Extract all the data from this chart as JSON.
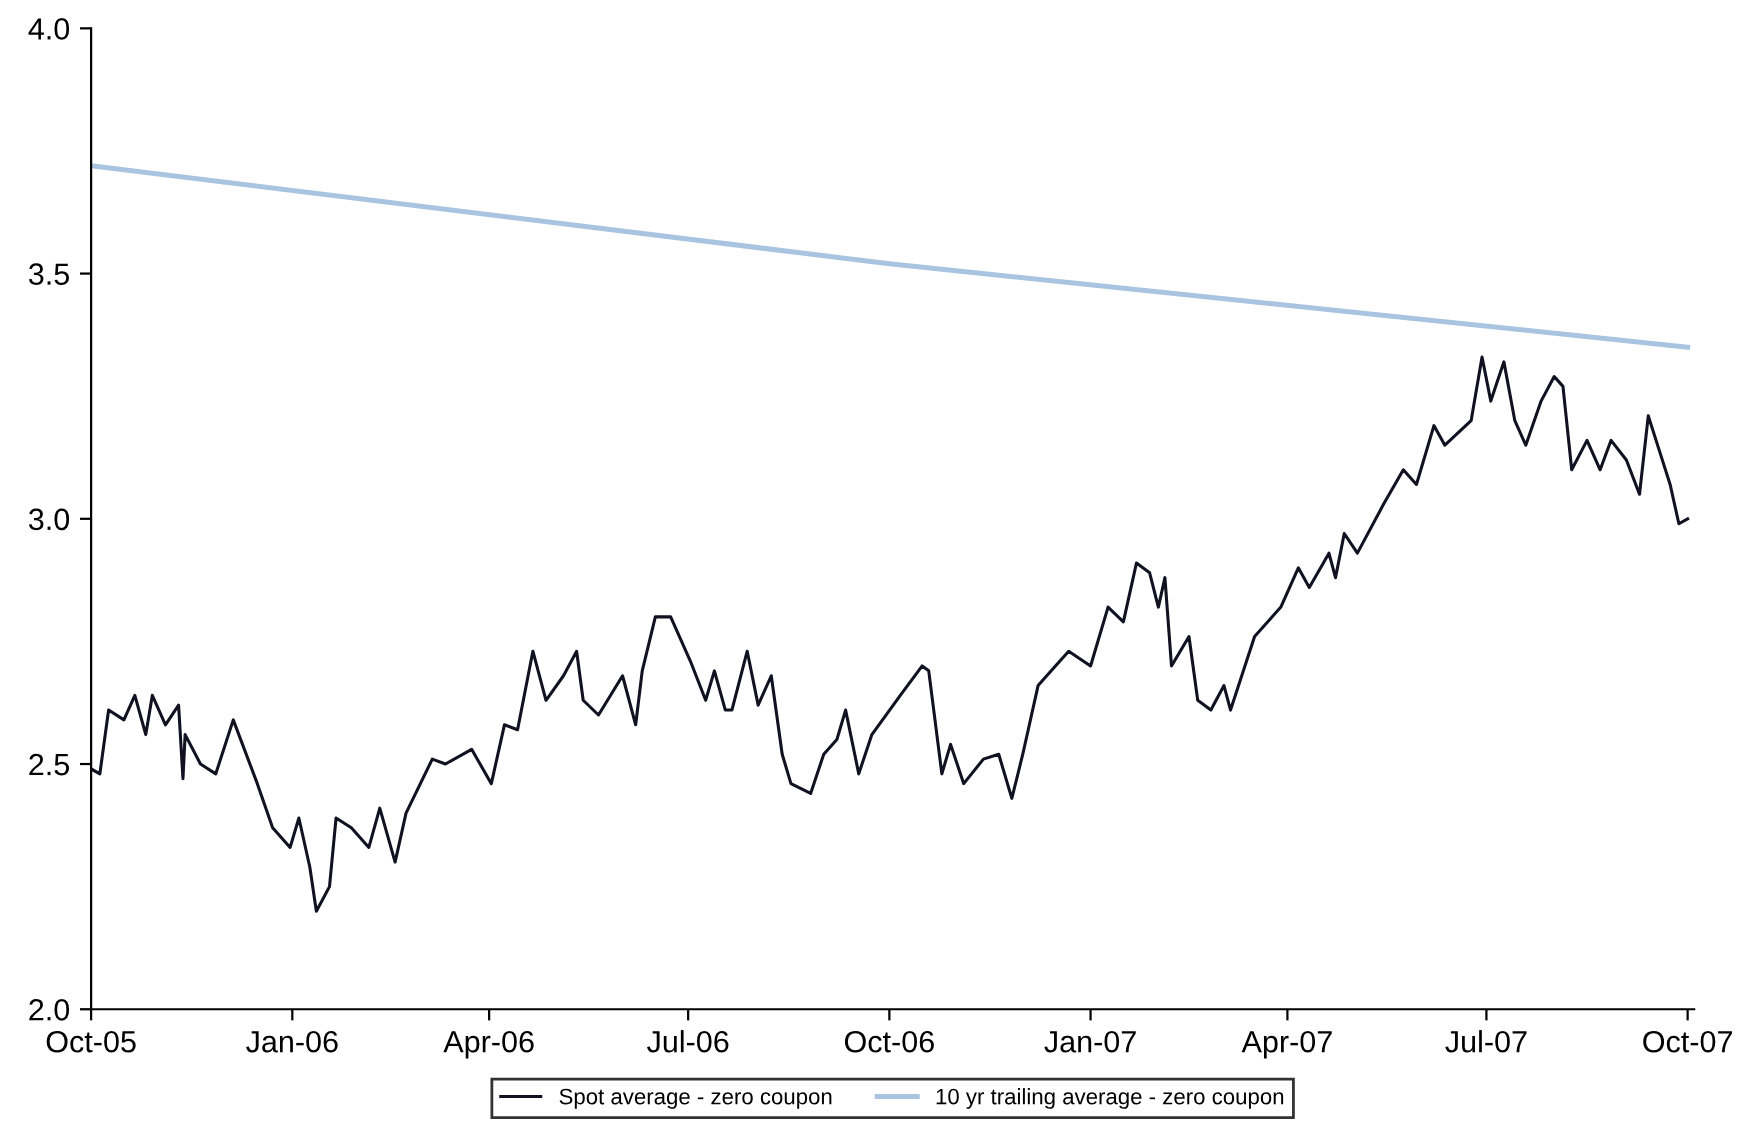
{
  "chart_data": {
    "type": "line",
    "xlim": [
      "2005-10-01",
      "2007-10-04"
    ],
    "xticks": [
      {
        "value": "2005-10-01",
        "label": "Oct-05"
      },
      {
        "value": "2006-01-01",
        "label": "Jan-06"
      },
      {
        "value": "2006-04-01",
        "label": "Apr-06"
      },
      {
        "value": "2006-07-01",
        "label": "Jul-06"
      },
      {
        "value": "2006-10-01",
        "label": "Oct-06"
      },
      {
        "value": "2007-01-01",
        "label": "Jan-07"
      },
      {
        "value": "2007-04-01",
        "label": "Apr-07"
      },
      {
        "value": "2007-07-01",
        "label": "Jul-07"
      },
      {
        "value": "2007-10-01",
        "label": "Oct-07"
      }
    ],
    "ylim": [
      2.0,
      4.0
    ],
    "yticks": [
      {
        "value": 2,
        "label": "2.0"
      },
      {
        "value": 2.5,
        "label": "2.5"
      },
      {
        "value": 3,
        "label": "3.0"
      },
      {
        "value": 3.5,
        "label": "3.5"
      },
      {
        "value": 4,
        "label": "4.0"
      }
    ],
    "grid": false,
    "legend": "bottom",
    "marker": "none",
    "line_style": "solid",
    "series": [
      {
        "name": "Spot average - zero coupon",
        "color": "#111122",
        "x": [
          "2005-10-01",
          "2005-10-05",
          "2005-10-09",
          "2005-10-16",
          "2005-10-21",
          "2005-10-26",
          "2005-10-29",
          "2005-11-04",
          "2005-11-10",
          "2005-11-12",
          "2005-11-13",
          "2005-11-20",
          "2005-11-27",
          "2005-12-05",
          "2005-12-16",
          "2005-12-23",
          "2005-12-31",
          "2006-01-04",
          "2006-01-09",
          "2006-01-12",
          "2006-01-18",
          "2006-01-21",
          "2006-01-28",
          "2006-02-05",
          "2006-02-10",
          "2006-02-17",
          "2006-02-22",
          "2006-03-06",
          "2006-03-12",
          "2006-03-24",
          "2006-04-02",
          "2006-04-08",
          "2006-04-14",
          "2006-04-21",
          "2006-04-27",
          "2006-05-05",
          "2006-05-11",
          "2006-05-14",
          "2006-05-21",
          "2006-06-01",
          "2006-06-07",
          "2006-06-10",
          "2006-06-16",
          "2006-06-23",
          "2006-07-02",
          "2006-07-09",
          "2006-07-13",
          "2006-07-18",
          "2006-07-21",
          "2006-07-28",
          "2006-08-02",
          "2006-08-08",
          "2006-08-13",
          "2006-08-17",
          "2006-08-26",
          "2006-09-01",
          "2006-09-07",
          "2006-09-11",
          "2006-09-17",
          "2006-09-23",
          "2006-10-06",
          "2006-10-16",
          "2006-10-19",
          "2006-10-25",
          "2006-10-29",
          "2006-11-04",
          "2006-11-13",
          "2006-11-20",
          "2006-11-26",
          "2006-12-01",
          "2006-12-08",
          "2006-12-14",
          "2006-12-22",
          "2007-01-01",
          "2007-01-09",
          "2007-01-16",
          "2007-01-22",
          "2007-01-28",
          "2007-02-01",
          "2007-02-04",
          "2007-02-07",
          "2007-02-15",
          "2007-02-19",
          "2007-02-25",
          "2007-03-03",
          "2007-03-06",
          "2007-03-17",
          "2007-03-29",
          "2007-04-06",
          "2007-04-11",
          "2007-04-20",
          "2007-04-23",
          "2007-04-27",
          "2007-05-03",
          "2007-05-15",
          "2007-05-24",
          "2007-05-30",
          "2007-06-07",
          "2007-06-12",
          "2007-06-24",
          "2007-06-29",
          "2007-07-03",
          "2007-07-09",
          "2007-07-14",
          "2007-07-19",
          "2007-07-26",
          "2007-08-01",
          "2007-08-05",
          "2007-08-09",
          "2007-08-16",
          "2007-08-22",
          "2007-08-27",
          "2007-09-03",
          "2007-09-09",
          "2007-09-13",
          "2007-09-18",
          "2007-09-23",
          "2007-09-27",
          "2007-10-01"
        ],
        "values": [
          2.49,
          2.48,
          2.61,
          2.59,
          2.64,
          2.56,
          2.64,
          2.58,
          2.62,
          2.47,
          2.56,
          2.5,
          2.48,
          2.59,
          2.46,
          2.37,
          2.33,
          2.39,
          2.29,
          2.2,
          2.25,
          2.39,
          2.37,
          2.33,
          2.41,
          2.3,
          2.4,
          2.51,
          2.5,
          2.53,
          2.46,
          2.58,
          2.57,
          2.73,
          2.63,
          2.68,
          2.73,
          2.63,
          2.6,
          2.68,
          2.58,
          2.69,
          2.8,
          2.8,
          2.71,
          2.63,
          2.69,
          2.61,
          2.61,
          2.73,
          2.62,
          2.68,
          2.52,
          2.46,
          2.44,
          2.52,
          2.55,
          2.61,
          2.48,
          2.56,
          2.64,
          2.7,
          2.69,
          2.48,
          2.54,
          2.46,
          2.51,
          2.52,
          2.43,
          2.52,
          2.66,
          2.69,
          2.73,
          2.7,
          2.82,
          2.79,
          2.91,
          2.89,
          2.82,
          2.88,
          2.7,
          2.76,
          2.63,
          2.61,
          2.66,
          2.61,
          2.76,
          2.82,
          2.9,
          2.86,
          2.93,
          2.88,
          2.97,
          2.93,
          3.03,
          3.1,
          3.07,
          3.19,
          3.15,
          3.2,
          3.33,
          3.24,
          3.32,
          3.2,
          3.15,
          3.24,
          3.29,
          3.27,
          3.1,
          3.16,
          3.1,
          3.16,
          3.12,
          3.05,
          3.21,
          3.14,
          3.07,
          2.99,
          3.0
        ]
      },
      {
        "name": "10 yr trailing average - zero coupon",
        "color": "#a9c4e0",
        "x": [
          "2005-10-01",
          "2006-10-01",
          "2007-10-01"
        ],
        "values": [
          3.72,
          3.52,
          3.35
        ]
      }
    ]
  }
}
